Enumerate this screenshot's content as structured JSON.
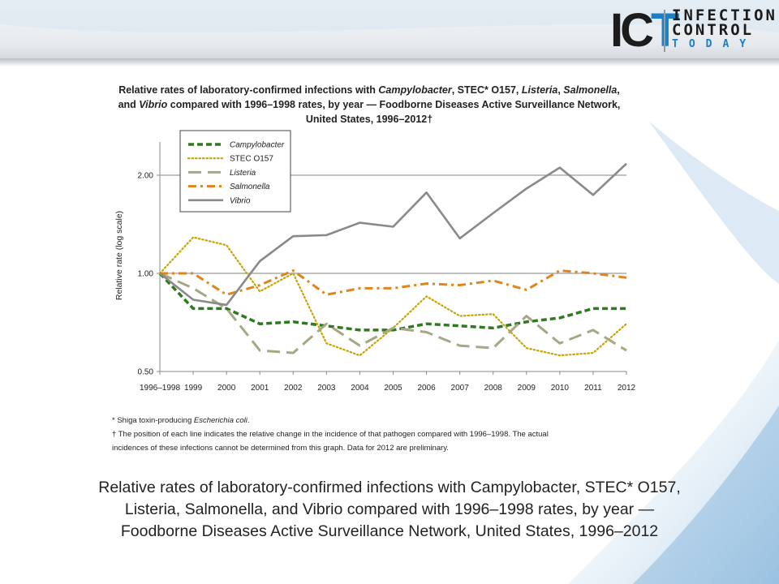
{
  "logo": {
    "letters": "ICT",
    "line1": "INFECTION",
    "line2": "CONTROL",
    "line3": "TODAY"
  },
  "chart_data": {
    "type": "line",
    "title_lines": [
      [
        {
          "text": "Relative rates of laboratory-confirmed infections with ",
          "italic": false
        },
        {
          "text": "Campylobacter",
          "italic": true
        },
        {
          "text": ", STEC* O157, ",
          "italic": false
        },
        {
          "text": "Listeria",
          "italic": true
        },
        {
          "text": ", ",
          "italic": false
        },
        {
          "text": "Salmonella",
          "italic": true
        },
        {
          "text": ",",
          "italic": false
        }
      ],
      [
        {
          "text": "and ",
          "italic": false
        },
        {
          "text": "Vibrio",
          "italic": true
        },
        {
          "text": " compared with 1996–1998 rates, by year — Foodborne Diseases Active Surveillance Network,",
          "italic": false
        }
      ],
      [
        {
          "text": "United States, 1996–2012†",
          "italic": false
        }
      ]
    ],
    "ylabel": "Relative rate (log scale)",
    "xlabel": "",
    "yscale": "log",
    "ylim": [
      0.5,
      2.3
    ],
    "yticks": [
      0.5,
      1.0,
      2.0
    ],
    "ytick_labels": [
      "0.50",
      "1.00",
      "2.00"
    ],
    "gridlines": [
      1.0,
      2.0
    ],
    "categories": [
      "1996–1998",
      "1999",
      "2000",
      "2001",
      "2002",
      "2003",
      "2004",
      "2005",
      "2006",
      "2007",
      "2008",
      "2009",
      "2010",
      "2011",
      "2012"
    ],
    "legend_position": "top-left",
    "series": [
      {
        "name": "Campylobacter",
        "italic": true,
        "color": "#2e7a1f",
        "style": "dashed",
        "values": [
          1.0,
          0.78,
          0.78,
          0.7,
          0.71,
          0.69,
          0.67,
          0.67,
          0.7,
          0.69,
          0.68,
          0.71,
          0.73,
          0.78,
          0.78
        ]
      },
      {
        "name": "STEC O157",
        "italic": false,
        "color": "#c9a400",
        "style": "dotted",
        "values": [
          1.0,
          1.29,
          1.22,
          0.88,
          1.0,
          0.61,
          0.56,
          0.68,
          0.85,
          0.74,
          0.75,
          0.59,
          0.56,
          0.57,
          0.7
        ]
      },
      {
        "name": "Listeria",
        "italic": true,
        "color": "#a6a783",
        "style": "longdash",
        "values": [
          1.0,
          0.9,
          0.78,
          0.58,
          0.57,
          0.7,
          0.6,
          0.68,
          0.66,
          0.6,
          0.59,
          0.74,
          0.61,
          0.67,
          0.58
        ]
      },
      {
        "name": "Salmonella",
        "italic": true,
        "color": "#e0841c",
        "style": "dashdot",
        "values": [
          1.0,
          1.0,
          0.86,
          0.92,
          1.02,
          0.86,
          0.9,
          0.9,
          0.93,
          0.92,
          0.95,
          0.89,
          1.02,
          1.0,
          0.97
        ]
      },
      {
        "name": "Vibrio",
        "italic": true,
        "color": "#8a8a8a",
        "style": "solid",
        "values": [
          1.0,
          0.83,
          0.8,
          1.09,
          1.3,
          1.31,
          1.43,
          1.39,
          1.77,
          1.28,
          1.53,
          1.82,
          2.11,
          1.74,
          2.17
        ]
      }
    ],
    "footnotes": [
      [
        {
          "text": "* Shiga toxin-producing ",
          "italic": false
        },
        {
          "text": "Escherichia coli",
          "italic": true
        },
        {
          "text": ".",
          "italic": false
        }
      ],
      [
        {
          "text": "† The position of each line indicates the relative change in the incidence of that pathogen compared with 1996–1998. The actual",
          "italic": false
        }
      ],
      [
        {
          "text": "   incidences of these infections cannot be determined from this graph.  Data for 2012 are preliminary.",
          "italic": false
        }
      ]
    ]
  },
  "caption": {
    "lines": [
      "Relative rates of laboratory-confirmed infections with Campylobacter, STEC* O157,",
      "Listeria, Salmonella, and Vibrio compared with 1996–1998 rates, by year —",
      "Foodborne Diseases Active Surveillance Network, United States, 1996–2012"
    ]
  }
}
